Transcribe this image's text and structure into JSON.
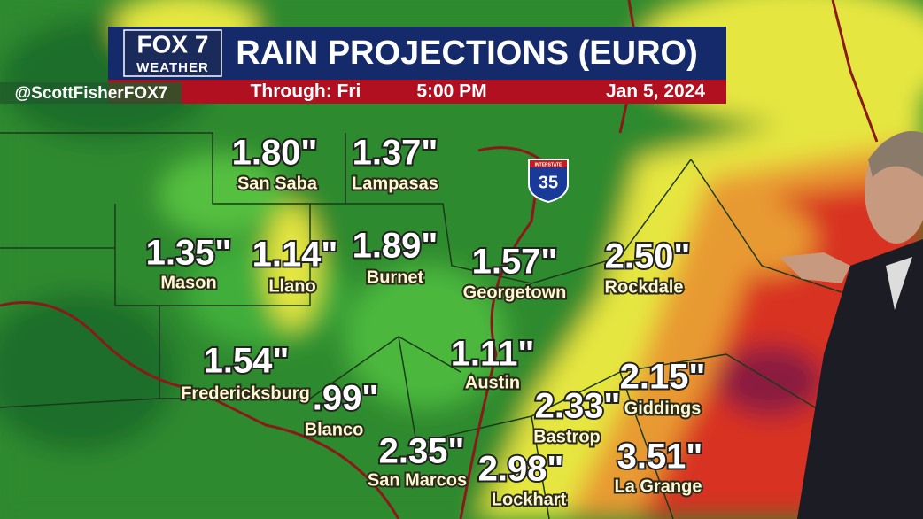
{
  "header": {
    "logo_top": "FOX 7",
    "logo_bottom": "WEATHER",
    "title": "RAIN PROJECTIONS (EURO)",
    "through": "Through: Fri",
    "time": "5:00 PM",
    "date": "Jan 5, 2024"
  },
  "handle": "@ScottFisherFOX7",
  "interstate": {
    "label": "INTERSTATE",
    "number": "35"
  },
  "cities": [
    {
      "name": "San Saba",
      "amount": "1.80\""
    },
    {
      "name": "Lampasas",
      "amount": "1.37\""
    },
    {
      "name": "Mason",
      "amount": "1.35\""
    },
    {
      "name": "Llano",
      "amount": "1.14\""
    },
    {
      "name": "Burnet",
      "amount": "1.89\""
    },
    {
      "name": "Georgetown",
      "amount": "1.57\""
    },
    {
      "name": "Rockdale",
      "amount": "2.50\""
    },
    {
      "name": "Austin",
      "amount": "1.11\""
    },
    {
      "name": "Fredericksburg",
      "amount": "1.54\""
    },
    {
      "name": "Blanco",
      "amount": ".99\""
    },
    {
      "name": "Giddings",
      "amount": "2.15\""
    },
    {
      "name": "Bastrop",
      "amount": "2.33\""
    },
    {
      "name": "San Marcos",
      "amount": "2.35\""
    },
    {
      "name": "Lockhart",
      "amount": "2.98\""
    },
    {
      "name": "La Grange",
      "amount": "3.51\""
    }
  ]
}
